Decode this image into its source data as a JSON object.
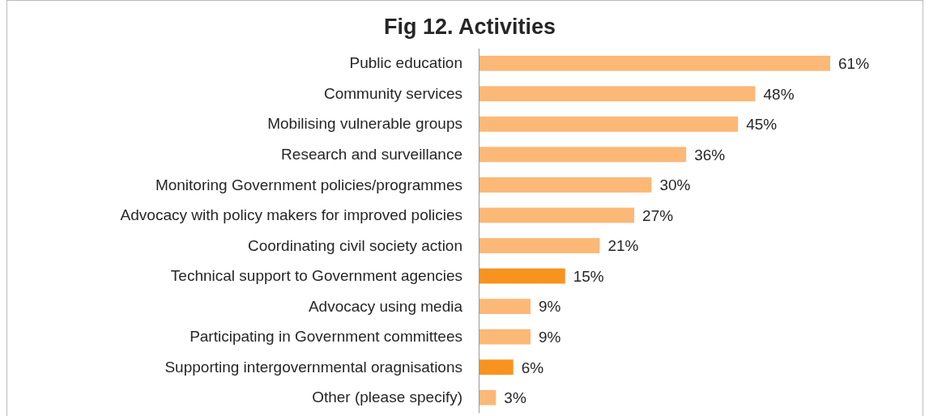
{
  "chart_data": {
    "type": "bar",
    "orientation": "horizontal",
    "title": "Fig 12. Activities",
    "categories": [
      "Public education",
      "Community services",
      "Mobilising vulnerable groups",
      "Research and surveillance",
      "Monitoring Government policies/programmes",
      "Advocacy with policy makers for improved policies",
      "Coordinating civil society action",
      "Technical support to Government agencies",
      "Advocacy using media",
      "Participating in Government committees",
      "Supporting intergovernmental oragnisations",
      "Other (please specify)"
    ],
    "values": [
      61,
      48,
      45,
      36,
      30,
      27,
      21,
      15,
      9,
      9,
      6,
      3
    ],
    "value_labels": [
      "61%",
      "48%",
      "45%",
      "36%",
      "30%",
      "27%",
      "21%",
      "15%",
      "9%",
      "9%",
      "6%",
      "3%"
    ],
    "colors": [
      "#fbb877",
      "#fbb877",
      "#fbb877",
      "#fbb877",
      "#fbb877",
      "#fbb877",
      "#fbb877",
      "#f7931e",
      "#fbb877",
      "#fbb877",
      "#f7931e",
      "#fbb877"
    ]
  }
}
